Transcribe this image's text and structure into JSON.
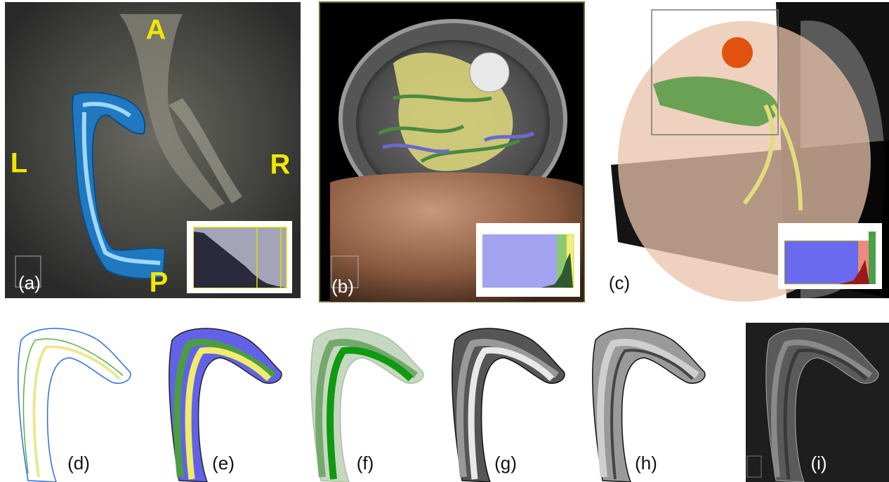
{
  "panels": {
    "a": {
      "label": "(a)",
      "anterior": "A",
      "left": "L",
      "right": "R",
      "posterior": "P"
    },
    "b": {
      "label": "(b)"
    },
    "c": {
      "label": "(c)"
    },
    "d": {
      "label": "(d)"
    },
    "e": {
      "label": "(e)"
    },
    "f": {
      "label": "(f)"
    },
    "g": {
      "label": "(g)"
    },
    "h": {
      "label": "(h)"
    },
    "i": {
      "label": "(i)"
    }
  }
}
